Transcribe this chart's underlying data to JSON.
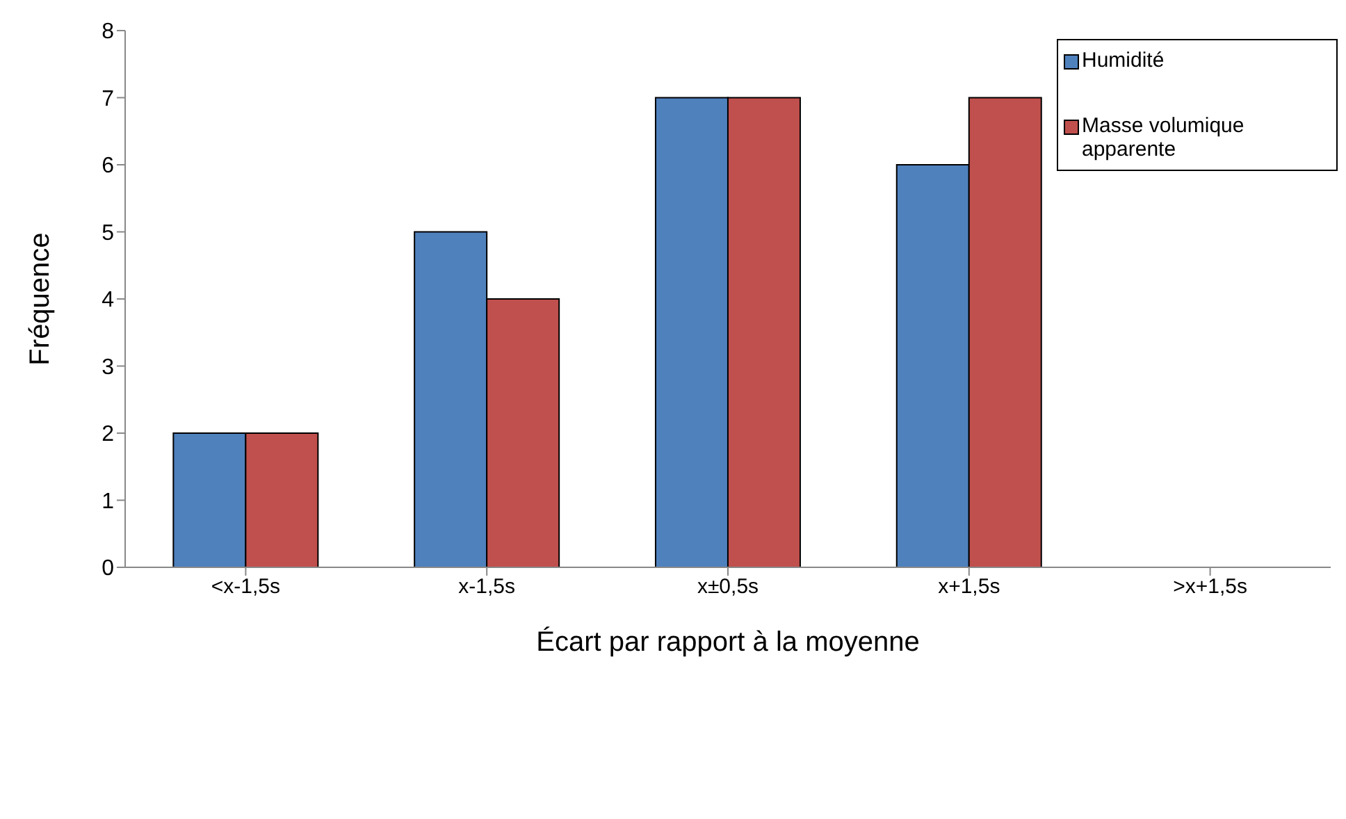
{
  "chart_data": {
    "type": "bar",
    "xlabel": "Écart par rapport à la moyenne",
    "ylabel": "Fréquence",
    "categories": [
      "<x-1,5s",
      "x-1,5s",
      "x±0,5s",
      "x+1,5s",
      ">x+1,5s"
    ],
    "series": [
      {
        "name": "Humidité",
        "color": "#4f81bd",
        "values": [
          2,
          5,
          7,
          6,
          0
        ]
      },
      {
        "name": "Masse volumique apparente",
        "color": "#c0504d",
        "values": [
          2,
          4,
          7,
          7,
          0
        ]
      }
    ],
    "ylim": [
      0,
      8
    ],
    "yticks": [
      0,
      1,
      2,
      3,
      4,
      5,
      6,
      7,
      8
    ],
    "grid": false,
    "legend": "top right"
  }
}
